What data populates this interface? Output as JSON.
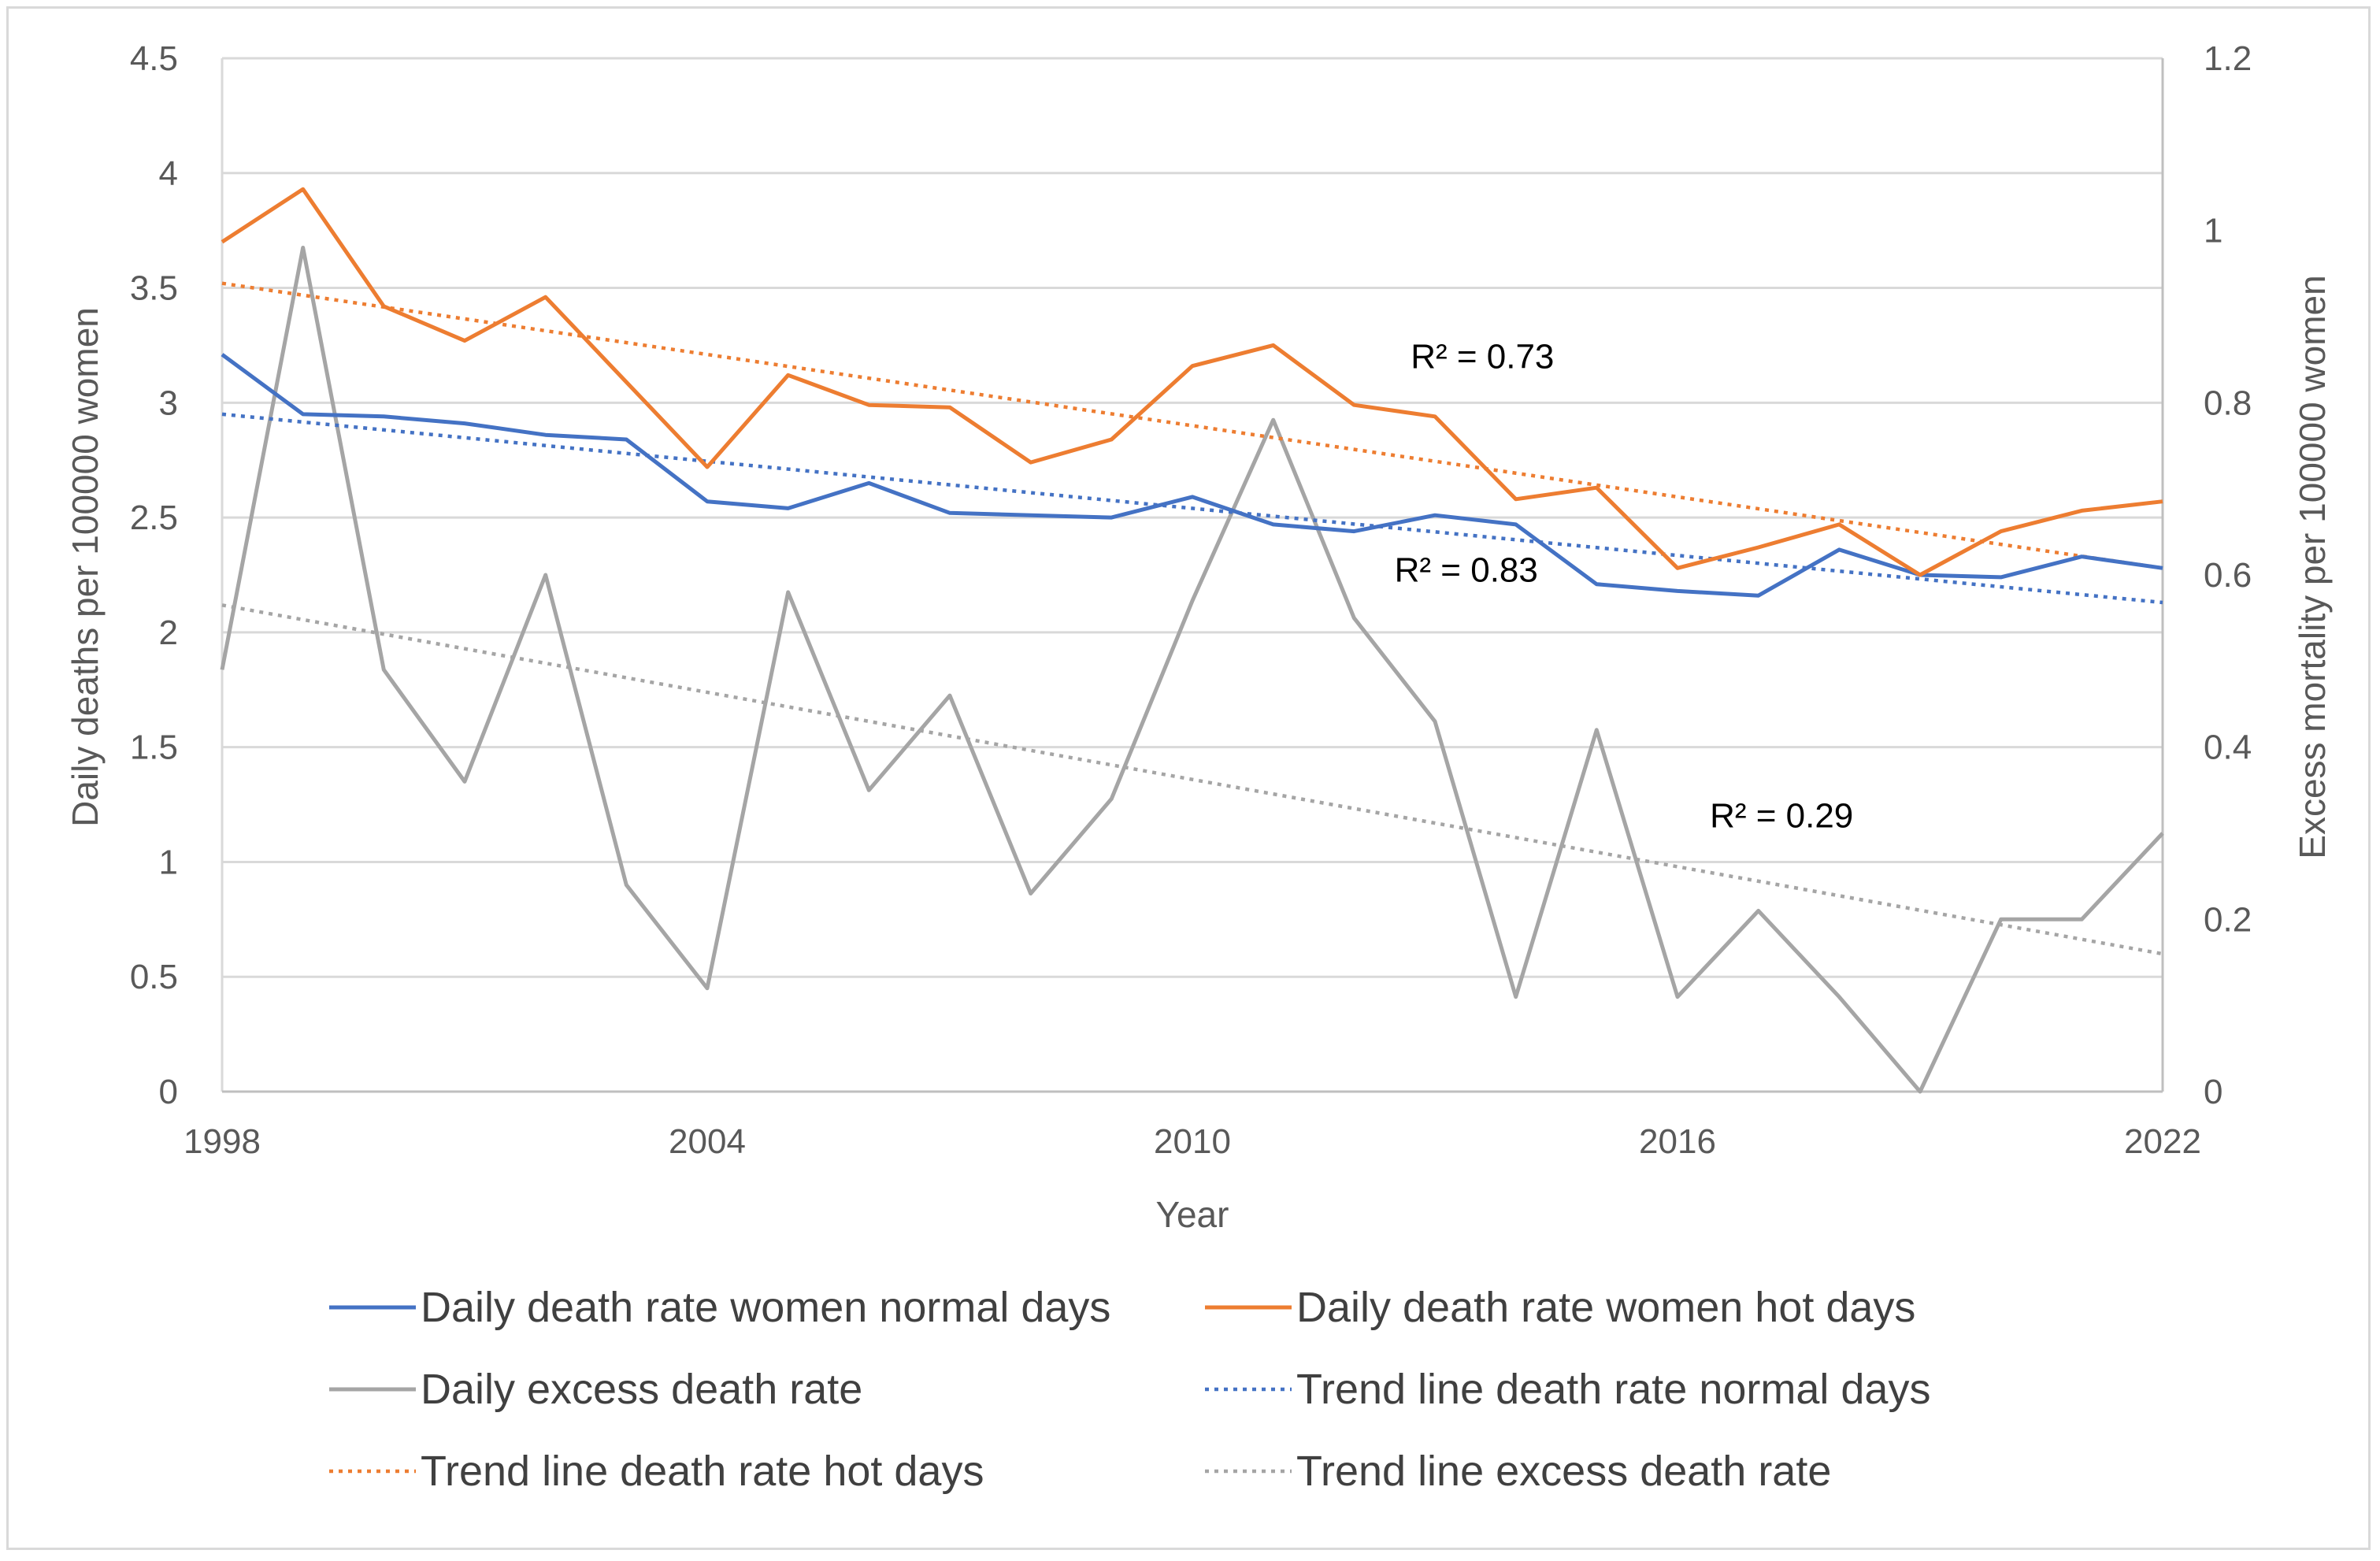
{
  "chart_data": {
    "type": "line",
    "title": "",
    "xlabel": "Year",
    "ylabel_left": "Daily deaths per 100000 women",
    "ylabel_right": "Excess mortality per 100000 women",
    "x_tick_labels": [
      "1998",
      "2004",
      "2010",
      "2016",
      "2022"
    ],
    "x": [
      1998,
      1999,
      2000,
      2001,
      2002,
      2003,
      2004,
      2005,
      2006,
      2007,
      2008,
      2009,
      2010,
      2011,
      2012,
      2013,
      2014,
      2015,
      2016,
      2017,
      2018,
      2019,
      2020,
      2021,
      2022
    ],
    "xlim": [
      1998,
      2022
    ],
    "ylim_left": [
      0,
      4.5
    ],
    "ylim_right": [
      0,
      1.2
    ],
    "left_ticks": [
      0,
      0.5,
      1,
      1.5,
      2,
      2.5,
      3,
      3.5,
      4,
      4.5
    ],
    "left_tick_labels": [
      "0",
      "0.5",
      "1",
      "1.5",
      "2",
      "2.5",
      "3",
      "3.5",
      "4",
      "4.5"
    ],
    "right_ticks": [
      0,
      0.2,
      0.4,
      0.6,
      0.8,
      1,
      1.2
    ],
    "right_tick_labels": [
      "0",
      "0.2",
      "0.4",
      "0.6",
      "0.8",
      "1",
      "1.2"
    ],
    "grid": true,
    "series": [
      {
        "name": "Daily death rate women normal days",
        "axis": "left",
        "style": "solid",
        "color": "#4472c4",
        "values": [
          3.21,
          2.95,
          2.94,
          2.91,
          2.86,
          2.84,
          2.57,
          2.54,
          2.65,
          2.52,
          2.51,
          2.5,
          2.59,
          2.47,
          2.44,
          2.51,
          2.47,
          2.21,
          2.18,
          2.16,
          2.36,
          2.25,
          2.24,
          2.33,
          2.28
        ]
      },
      {
        "name": "Daily death rate women hot days",
        "axis": "left",
        "style": "solid",
        "color": "#ed7d31",
        "values": [
          3.7,
          3.93,
          3.42,
          3.27,
          3.46,
          3.09,
          2.72,
          3.12,
          2.99,
          2.98,
          2.74,
          2.84,
          3.16,
          3.25,
          2.99,
          2.94,
          2.58,
          2.63,
          2.28,
          2.37,
          2.47,
          2.25,
          2.44,
          2.53,
          2.57
        ]
      },
      {
        "name": "Daily excess death rate",
        "axis": "right",
        "style": "solid",
        "color": "#a5a5a5",
        "values": [
          0.49,
          0.98,
          0.49,
          0.36,
          0.6,
          0.24,
          0.12,
          0.58,
          0.35,
          0.46,
          0.23,
          0.34,
          0.57,
          0.78,
          0.55,
          0.43,
          0.11,
          0.42,
          0.11,
          0.21,
          0.11,
          0.0,
          0.2,
          0.2,
          0.3
        ]
      },
      {
        "name": "Trend line death rate normal days",
        "axis": "left",
        "style": "dotted",
        "color": "#4472c4",
        "trend": true,
        "values_from_to": [
          2.95,
          2.13
        ]
      },
      {
        "name": "Trend line death rate hot days",
        "axis": "left",
        "style": "dotted",
        "color": "#ed7d31",
        "trend": true,
        "values_from_to": [
          3.52,
          2.28
        ]
      },
      {
        "name": "Trend line excess death rate",
        "axis": "right",
        "style": "dotted",
        "color": "#a5a5a5",
        "trend": true,
        "values_from_to": [
          0.565,
          0.16
        ]
      }
    ],
    "annotations": [
      {
        "text": "R² = 0.73",
        "near_year": 2012.7,
        "near_value_left": 3.15
      },
      {
        "text": "R² = 0.83",
        "near_year": 2012.5,
        "near_value_left": 2.22
      },
      {
        "text": "R² = 0.29",
        "near_year": 2016.4,
        "near_value_left": 1.15
      }
    ],
    "legend_position": "bottom"
  }
}
